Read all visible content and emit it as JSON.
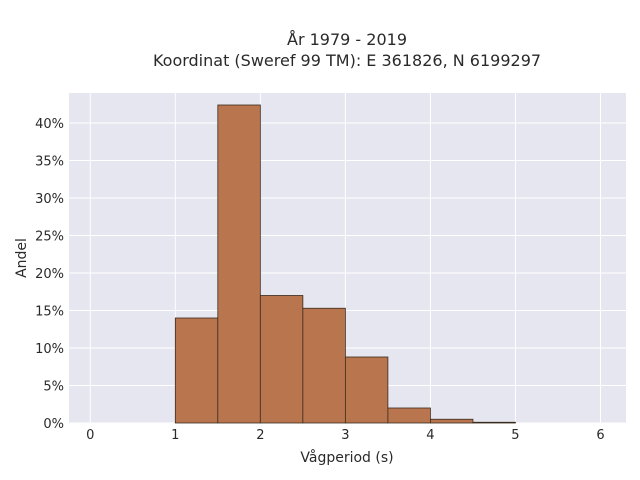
{
  "chart_data": {
    "type": "bar",
    "title_line1": "År 1979 - 2019",
    "title_line2": "Koordinat (Sweref 99 TM): E 361826, N 6199297",
    "xlabel": "Vågperiod (s)",
    "ylabel": "Andel",
    "xlim": [
      -0.25,
      6.3
    ],
    "ylim": [
      0,
      44
    ],
    "x_ticks": [
      0,
      1,
      2,
      3,
      4,
      5,
      6
    ],
    "x_tick_labels": [
      "0",
      "1",
      "2",
      "3",
      "4",
      "5",
      "6"
    ],
    "y_ticks": [
      0,
      5,
      10,
      15,
      20,
      25,
      30,
      35,
      40
    ],
    "y_tick_labels": [
      "0%",
      "5%",
      "10%",
      "15%",
      "20%",
      "25%",
      "30%",
      "35%",
      "40%"
    ],
    "bin_width": 0.5,
    "bins": [
      {
        "start": 1.0,
        "value": 14.0
      },
      {
        "start": 1.5,
        "value": 42.4
      },
      {
        "start": 2.0,
        "value": 17.0
      },
      {
        "start": 2.5,
        "value": 15.3
      },
      {
        "start": 3.0,
        "value": 8.8
      },
      {
        "start": 3.5,
        "value": 2.0
      },
      {
        "start": 4.0,
        "value": 0.5
      },
      {
        "start": 4.5,
        "value": 0.1
      }
    ],
    "grid": true,
    "colors": {
      "bar_fill": "#b9764e",
      "bar_stroke": "#3a2a1e",
      "plot_bg": "#e5e6ef",
      "grid": "#ffffff",
      "text": "#2a2a2a"
    }
  }
}
